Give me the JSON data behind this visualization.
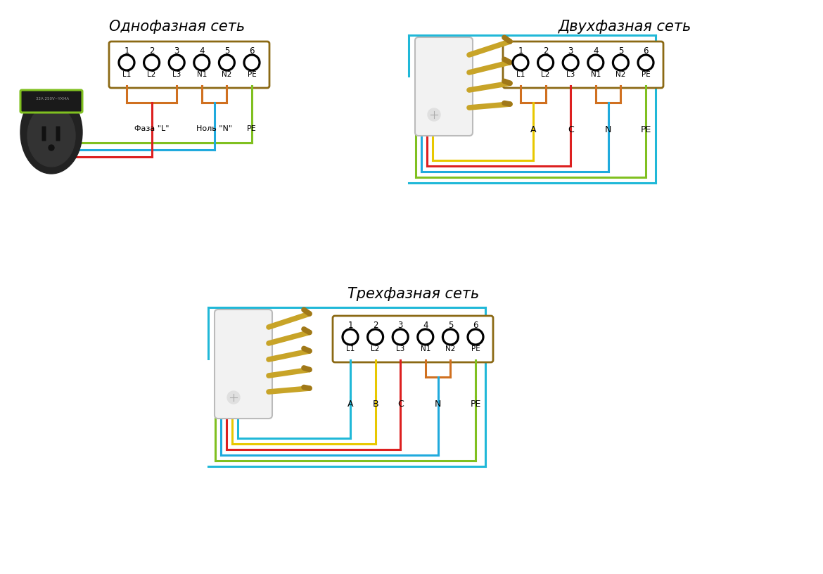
{
  "title1": "Однофазная сеть",
  "title2": "Двухфазная сеть",
  "title3": "Трехфазная сеть",
  "bg_color": "#ffffff",
  "box_color": "#8B6914",
  "numbers": [
    "1",
    "2",
    "3",
    "4",
    "5",
    "6"
  ],
  "labels": [
    "L1",
    "L2",
    "L3",
    "N1",
    "N2",
    "PE"
  ],
  "bottom1_left": "Фаза \"L\"",
  "bottom1_mid": "Ноль \"N\"",
  "bottom1_right": "PE",
  "color_red": "#dd2020",
  "color_blue": "#20aadd",
  "color_green": "#80c020",
  "color_yellow": "#e8c800",
  "color_orange": "#d07020",
  "color_cyan": "#20b8d8",
  "lw": 2.2
}
